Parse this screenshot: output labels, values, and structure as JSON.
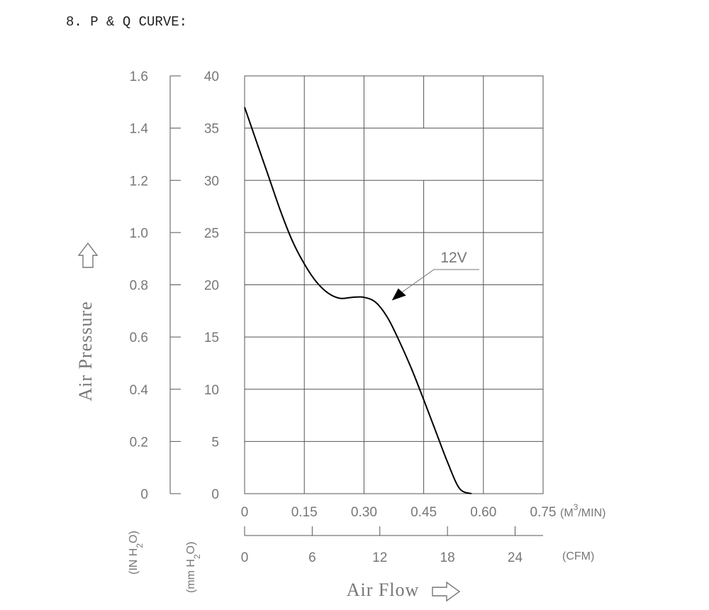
{
  "page_title": "8. P & Q CURVE:",
  "colors": {
    "grid": "#555555",
    "curve": "#000000",
    "text": "#777777",
    "title": "#222222"
  },
  "chart_data": {
    "type": "line",
    "title": "8. P & Q CURVE:",
    "xlabel": "Air Flow",
    "ylabel": "Air Pressure",
    "grid": true,
    "x_unit_primary": "(M³/MIN)",
    "x_unit_primary_parts": {
      "main": "(M",
      "sup": "3",
      "tail": "/MIN)"
    },
    "x_unit_secondary": "(CFM)",
    "y_unit_primary": "(IN H₂O)",
    "y_unit_primary_parts": {
      "main": "(IN H",
      "sub": "2",
      "tail": "O)"
    },
    "y_unit_secondary": "(mm H₂O)",
    "y_unit_secondary_parts": {
      "main": "(mm H",
      "sub": "2",
      "tail": "O)"
    },
    "xlim": [
      0,
      0.75
    ],
    "ylim": [
      0,
      40
    ],
    "x_ticks": [
      "0",
      "0.15",
      "0.30",
      "0.45",
      "0.60",
      "0.75"
    ],
    "x_ticks_cfm": [
      "0",
      "6",
      "12",
      "18",
      "24"
    ],
    "y_ticks_mm": [
      "0",
      "5",
      "10",
      "15",
      "20",
      "25",
      "30",
      "35",
      "40"
    ],
    "y_ticks_in": [
      "0",
      "0.2",
      "0.4",
      "0.6",
      "0.8",
      "1.0",
      "1.2",
      "1.4",
      "1.6"
    ],
    "series": [
      {
        "name": "12V",
        "x": [
          0,
          0.03,
          0.06,
          0.09,
          0.12,
          0.15,
          0.18,
          0.21,
          0.24,
          0.27,
          0.3,
          0.33,
          0.36,
          0.39,
          0.42,
          0.45,
          0.48,
          0.51,
          0.54,
          0.57
        ],
        "y": [
          37.0,
          33.7,
          30.4,
          27.1,
          24.2,
          22.0,
          20.3,
          19.2,
          18.7,
          18.8,
          18.8,
          18.3,
          16.8,
          14.5,
          11.9,
          9.0,
          6.0,
          3.0,
          0.5,
          0
        ]
      }
    ],
    "annotations": [
      {
        "text": "12V",
        "x": 0.37,
        "y": 18.5
      }
    ]
  }
}
